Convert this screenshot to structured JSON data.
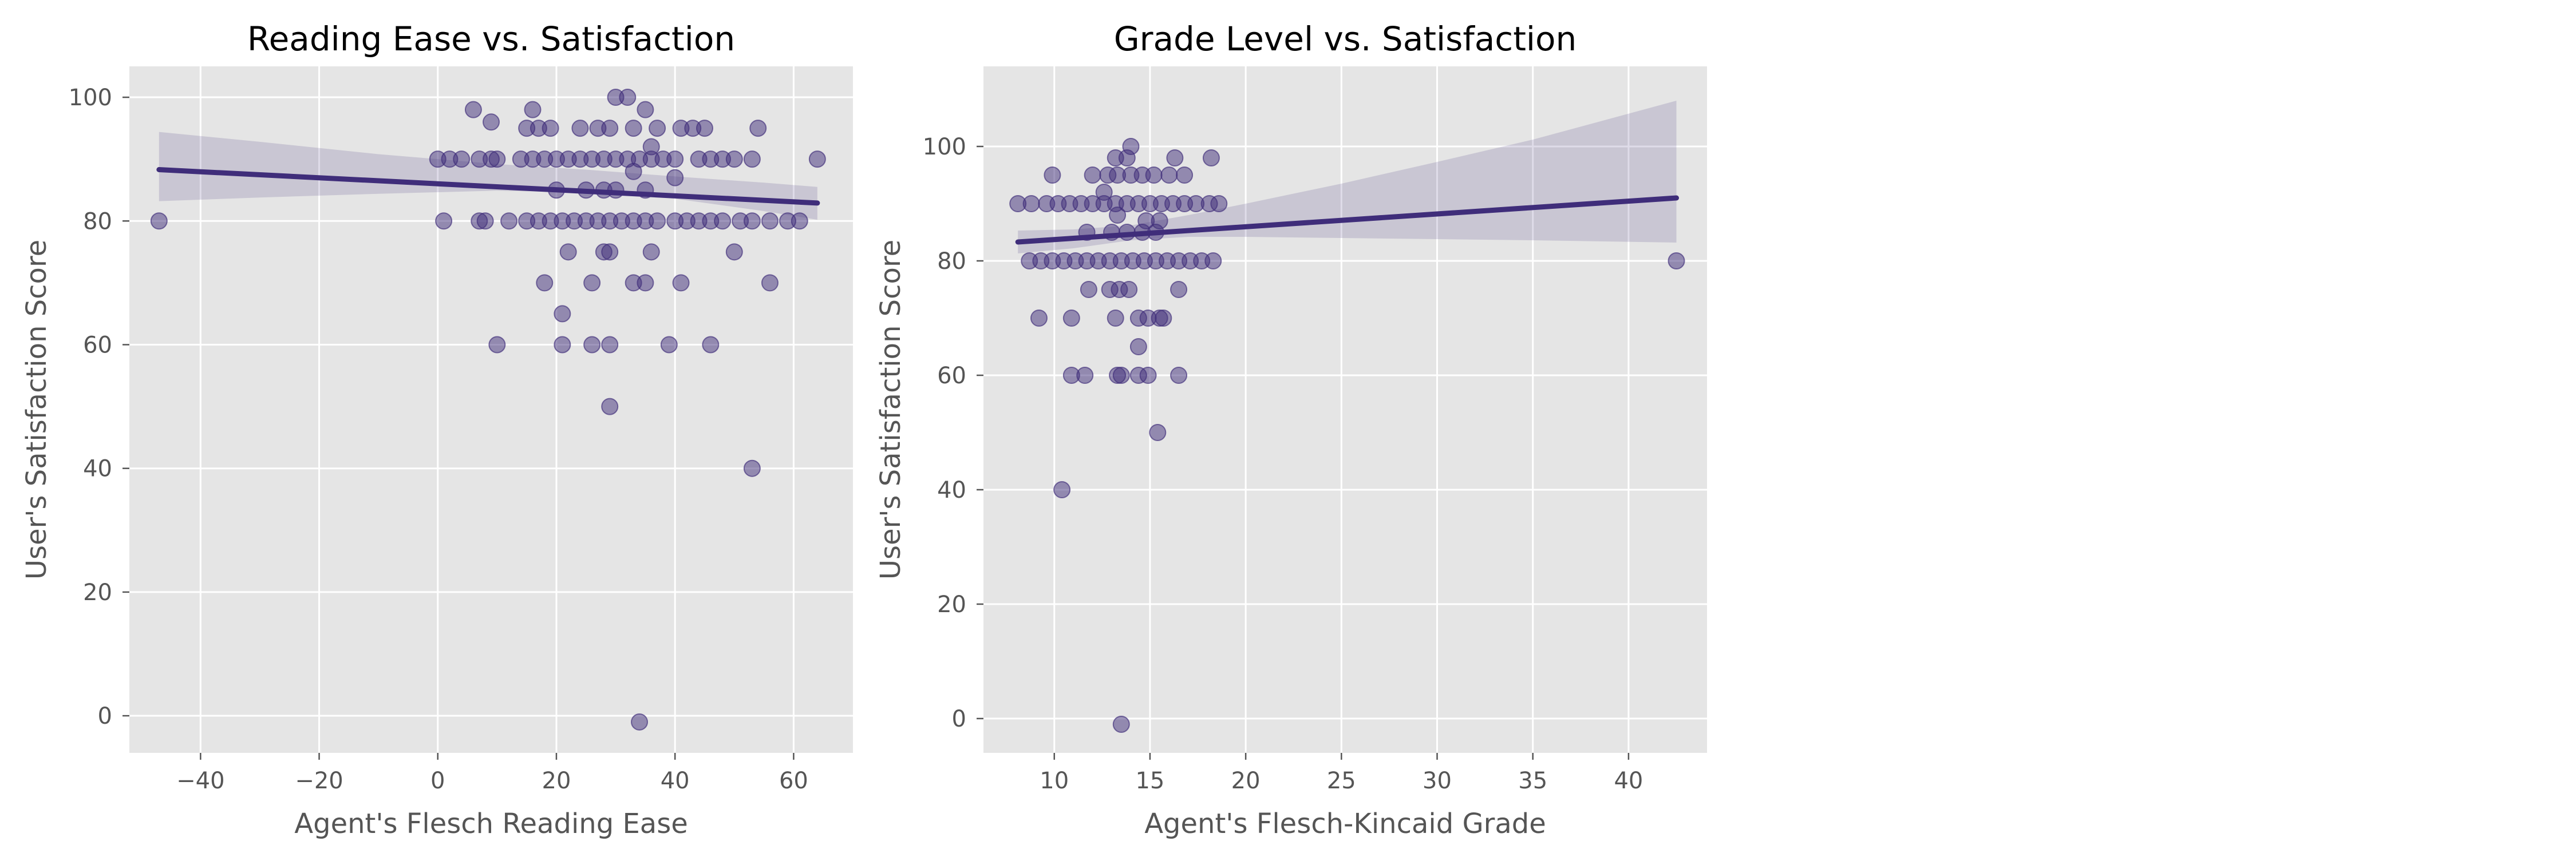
{
  "colors": {
    "point": "#3f2d7a",
    "line": "#3f2d7a",
    "band": "#3f2d7a",
    "panel_bg": "#e5e5e5",
    "grid": "#ffffff"
  },
  "chart_data": [
    {
      "type": "scatter",
      "title": "Reading Ease vs. Satisfaction",
      "xlabel": "Agent's Flesch Reading Ease",
      "ylabel": "User's Satisfaction Score",
      "xlim": [
        -52,
        70
      ],
      "ylim": [
        -6,
        105
      ],
      "xticks": [
        -40,
        -20,
        0,
        20,
        40,
        60
      ],
      "yticks": [
        0,
        20,
        40,
        60,
        80,
        100
      ],
      "xtick_labels": [
        "−40",
        "−20",
        "0",
        "20",
        "40",
        "60"
      ],
      "ytick_labels": [
        "0",
        "20",
        "40",
        "60",
        "80",
        "100"
      ],
      "grid": true,
      "regression": {
        "x": [
          -47,
          64
        ],
        "y": [
          88.3,
          82.9
        ]
      },
      "confidence_band": {
        "x": [
          -47,
          -30,
          -10,
          10,
          25,
          40,
          55,
          64
        ],
        "upper": [
          94.4,
          92.8,
          90.8,
          89.2,
          88.3,
          87.2,
          86.2,
          85.5
        ],
        "lower": [
          83.2,
          83.8,
          84.4,
          84.9,
          84.6,
          83.6,
          81.6,
          80.2
        ]
      },
      "points": [
        [
          -47,
          80
        ],
        [
          6,
          98
        ],
        [
          9,
          96
        ],
        [
          16,
          98
        ],
        [
          30,
          100
        ],
        [
          32,
          100
        ],
        [
          35,
          98
        ],
        [
          0,
          90
        ],
        [
          2,
          90
        ],
        [
          4,
          90
        ],
        [
          7,
          90
        ],
        [
          9,
          90
        ],
        [
          10,
          90
        ],
        [
          14,
          90
        ],
        [
          16,
          90
        ],
        [
          18,
          90
        ],
        [
          20,
          90
        ],
        [
          22,
          90
        ],
        [
          24,
          90
        ],
        [
          26,
          90
        ],
        [
          28,
          90
        ],
        [
          30,
          90
        ],
        [
          32,
          90
        ],
        [
          34,
          90
        ],
        [
          36,
          90
        ],
        [
          38,
          90
        ],
        [
          40,
          90
        ],
        [
          44,
          90
        ],
        [
          46,
          90
        ],
        [
          48,
          90
        ],
        [
          50,
          90
        ],
        [
          53,
          90
        ],
        [
          64,
          90
        ],
        [
          15,
          95
        ],
        [
          17,
          95
        ],
        [
          19,
          95
        ],
        [
          24,
          95
        ],
        [
          27,
          95
        ],
        [
          29,
          95
        ],
        [
          33,
          95
        ],
        [
          37,
          95
        ],
        [
          41,
          95
        ],
        [
          43,
          95
        ],
        [
          45,
          95
        ],
        [
          54,
          95
        ],
        [
          1,
          80
        ],
        [
          7,
          80
        ],
        [
          8,
          80
        ],
        [
          12,
          80
        ],
        [
          15,
          80
        ],
        [
          17,
          80
        ],
        [
          19,
          80
        ],
        [
          21,
          80
        ],
        [
          23,
          80
        ],
        [
          25,
          80
        ],
        [
          27,
          80
        ],
        [
          29,
          80
        ],
        [
          31,
          80
        ],
        [
          33,
          80
        ],
        [
          35,
          80
        ],
        [
          37,
          80
        ],
        [
          40,
          80
        ],
        [
          42,
          80
        ],
        [
          44,
          80
        ],
        [
          46,
          80
        ],
        [
          48,
          80
        ],
        [
          51,
          80
        ],
        [
          53,
          80
        ],
        [
          56,
          80
        ],
        [
          59,
          80
        ],
        [
          61,
          80
        ],
        [
          20,
          85
        ],
        [
          25,
          85
        ],
        [
          28,
          85
        ],
        [
          30,
          85
        ],
        [
          35,
          85
        ],
        [
          33,
          88
        ],
        [
          36,
          92
        ],
        [
          40,
          87
        ],
        [
          22,
          75
        ],
        [
          28,
          75
        ],
        [
          29,
          75
        ],
        [
          36,
          75
        ],
        [
          50,
          75
        ],
        [
          18,
          70
        ],
        [
          26,
          70
        ],
        [
          33,
          70
        ],
        [
          35,
          70
        ],
        [
          41,
          70
        ],
        [
          56,
          70
        ],
        [
          21,
          65
        ],
        [
          10,
          60
        ],
        [
          21,
          60
        ],
        [
          26,
          60
        ],
        [
          29,
          60
        ],
        [
          39,
          60
        ],
        [
          46,
          60
        ],
        [
          29,
          50
        ],
        [
          53,
          40
        ],
        [
          34,
          -1
        ]
      ]
    },
    {
      "type": "scatter",
      "title": "Grade Level vs. Satisfaction",
      "xlabel": "Agent's Flesch-Kincaid Grade",
      "ylabel": "User's Satisfaction Score",
      "xlim": [
        6.3,
        44.1
      ],
      "ylim": [
        -6,
        114
      ],
      "xticks": [
        10,
        15,
        20,
        25,
        30,
        35,
        40
      ],
      "yticks": [
        0,
        20,
        40,
        60,
        80,
        100
      ],
      "xtick_labels": [
        "10",
        "15",
        "20",
        "25",
        "30",
        "35",
        "40"
      ],
      "ytick_labels": [
        "0",
        "20",
        "40",
        "60",
        "80",
        "100"
      ],
      "grid": true,
      "regression": {
        "x": [
          8.1,
          42.5
        ],
        "y": [
          83.3,
          91
        ]
      },
      "confidence_band": {
        "x": [
          8.1,
          11,
          14,
          17,
          20,
          25,
          30,
          35,
          42.5
        ],
        "upper": [
          85.3,
          85.5,
          86.2,
          88,
          90,
          93.5,
          97.3,
          101.2,
          108
        ],
        "lower": [
          81.3,
          82.2,
          83.6,
          84.2,
          84.2,
          84,
          83.8,
          83.6,
          83.2
        ]
      },
      "points": [
        [
          14,
          100
        ],
        [
          9.9,
          95
        ],
        [
          12,
          95
        ],
        [
          12.8,
          95
        ],
        [
          13.3,
          95
        ],
        [
          14,
          95
        ],
        [
          14.6,
          95
        ],
        [
          15.2,
          95
        ],
        [
          16,
          95
        ],
        [
          16.8,
          95
        ],
        [
          13.2,
          98
        ],
        [
          13.8,
          98
        ],
        [
          16.3,
          98
        ],
        [
          18.2,
          98
        ],
        [
          12.6,
          92
        ],
        [
          13.3,
          88
        ],
        [
          14.8,
          87
        ],
        [
          15.5,
          87
        ],
        [
          8.1,
          90
        ],
        [
          8.8,
          90
        ],
        [
          9.6,
          90
        ],
        [
          10.2,
          90
        ],
        [
          10.8,
          90
        ],
        [
          11.4,
          90
        ],
        [
          12,
          90
        ],
        [
          12.6,
          90
        ],
        [
          13.2,
          90
        ],
        [
          13.8,
          90
        ],
        [
          14.4,
          90
        ],
        [
          15,
          90
        ],
        [
          15.6,
          90
        ],
        [
          16.2,
          90
        ],
        [
          16.8,
          90
        ],
        [
          17.4,
          90
        ],
        [
          18.1,
          90
        ],
        [
          18.6,
          90
        ],
        [
          11.7,
          85
        ],
        [
          13,
          85
        ],
        [
          13.8,
          85
        ],
        [
          14.6,
          85
        ],
        [
          15.3,
          85
        ],
        [
          8.7,
          80
        ],
        [
          9.3,
          80
        ],
        [
          9.9,
          80
        ],
        [
          10.5,
          80
        ],
        [
          11.1,
          80
        ],
        [
          11.7,
          80
        ],
        [
          12.3,
          80
        ],
        [
          12.9,
          80
        ],
        [
          13.5,
          80
        ],
        [
          14.1,
          80
        ],
        [
          14.7,
          80
        ],
        [
          15.3,
          80
        ],
        [
          15.9,
          80
        ],
        [
          16.5,
          80
        ],
        [
          17.1,
          80
        ],
        [
          17.7,
          80
        ],
        [
          18.3,
          80
        ],
        [
          42.5,
          80
        ],
        [
          11.8,
          75
        ],
        [
          12.9,
          75
        ],
        [
          13.4,
          75
        ],
        [
          13.9,
          75
        ],
        [
          16.5,
          75
        ],
        [
          9.2,
          70
        ],
        [
          10.9,
          70
        ],
        [
          13.2,
          70
        ],
        [
          14.4,
          70
        ],
        [
          14.9,
          70
        ],
        [
          15.5,
          70
        ],
        [
          15.7,
          70
        ],
        [
          14.4,
          65
        ],
        [
          10.9,
          60
        ],
        [
          11.6,
          60
        ],
        [
          13.3,
          60
        ],
        [
          13.5,
          60
        ],
        [
          14.4,
          60
        ],
        [
          14.9,
          60
        ],
        [
          16.5,
          60
        ],
        [
          15.4,
          50
        ],
        [
          10.4,
          40
        ],
        [
          13.5,
          -1
        ]
      ]
    }
  ]
}
